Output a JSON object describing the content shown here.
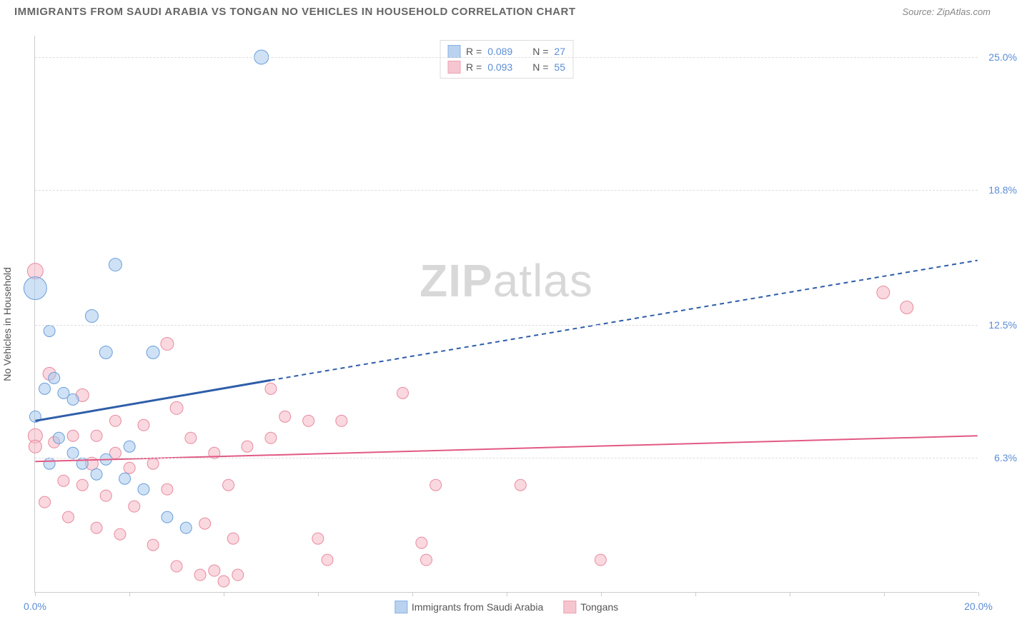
{
  "header": {
    "title": "IMMIGRANTS FROM SAUDI ARABIA VS TONGAN NO VEHICLES IN HOUSEHOLD CORRELATION CHART",
    "source": "Source: ZipAtlas.com"
  },
  "ylabel": "No Vehicles in Household",
  "watermark": {
    "bold": "ZIP",
    "light": "atlas"
  },
  "chart": {
    "type": "scatter",
    "xlim": [
      0,
      20
    ],
    "ylim": [
      0,
      26
    ],
    "background_color": "#ffffff",
    "grid_color": "#dddddd",
    "axis_color": "#cccccc",
    "tick_label_color": "#5b8dd6",
    "tick_fontsize": 14,
    "yticks": [
      {
        "value": 6.3,
        "label": "6.3%"
      },
      {
        "value": 12.5,
        "label": "12.5%"
      },
      {
        "value": 18.8,
        "label": "18.8%"
      },
      {
        "value": 25.0,
        "label": "25.0%"
      }
    ],
    "xticks_major": [
      0,
      20
    ],
    "xtick_labels": [
      {
        "value": 0,
        "label": "0.0%"
      },
      {
        "value": 20,
        "label": "20.0%"
      }
    ],
    "xticks_minor": [
      2,
      4,
      6,
      8,
      10,
      12,
      14,
      16,
      18
    ],
    "series": [
      {
        "key": "saudi",
        "label": "Immigrants from Saudi Arabia",
        "fill": "#a8c8ec",
        "stroke": "#6b9edb",
        "fill_opacity": 0.55,
        "marker_radius": 8,
        "points": [
          {
            "x": 4.8,
            "y": 25.0,
            "r": 10
          },
          {
            "x": 0.0,
            "y": 14.2,
            "r": 16
          },
          {
            "x": 1.7,
            "y": 15.3,
            "r": 9
          },
          {
            "x": 1.2,
            "y": 12.9,
            "r": 9
          },
          {
            "x": 0.3,
            "y": 12.2,
            "r": 8
          },
          {
            "x": 1.5,
            "y": 11.2,
            "r": 9
          },
          {
            "x": 2.5,
            "y": 11.2,
            "r": 9
          },
          {
            "x": 0.4,
            "y": 10.0,
            "r": 8
          },
          {
            "x": 0.2,
            "y": 9.5,
            "r": 8
          },
          {
            "x": 0.6,
            "y": 9.3,
            "r": 8
          },
          {
            "x": 0.0,
            "y": 8.2,
            "r": 8
          },
          {
            "x": 2.0,
            "y": 6.8,
            "r": 8
          },
          {
            "x": 1.5,
            "y": 6.2,
            "r": 8
          },
          {
            "x": 0.8,
            "y": 6.5,
            "r": 8
          },
          {
            "x": 1.3,
            "y": 5.5,
            "r": 8
          },
          {
            "x": 1.9,
            "y": 5.3,
            "r": 8
          },
          {
            "x": 2.3,
            "y": 4.8,
            "r": 8
          },
          {
            "x": 2.8,
            "y": 3.5,
            "r": 8
          },
          {
            "x": 3.2,
            "y": 3.0,
            "r": 8
          },
          {
            "x": 1.0,
            "y": 6.0,
            "r": 8
          },
          {
            "x": 0.5,
            "y": 7.2,
            "r": 8
          },
          {
            "x": 0.8,
            "y": 9.0,
            "r": 8
          },
          {
            "x": 0.3,
            "y": 6.0,
            "r": 8
          }
        ],
        "trend": {
          "color": "#2e5da8",
          "width": 3,
          "solid_from": {
            "x": 0,
            "y": 8.0
          },
          "solid_to": {
            "x": 5.0,
            "y": 9.9
          },
          "dash_to": {
            "x": 20,
            "y": 15.5
          }
        }
      },
      {
        "key": "tongan",
        "label": "Tongans",
        "fill": "#f5b8c5",
        "stroke": "#e88aa0",
        "fill_opacity": 0.55,
        "marker_radius": 8,
        "points": [
          {
            "x": 0.0,
            "y": 15.0,
            "r": 11
          },
          {
            "x": 0.3,
            "y": 10.2,
            "r": 9
          },
          {
            "x": 1.0,
            "y": 9.2,
            "r": 9
          },
          {
            "x": 2.8,
            "y": 11.6,
            "r": 9
          },
          {
            "x": 3.0,
            "y": 8.6,
            "r": 9
          },
          {
            "x": 1.7,
            "y": 8.0,
            "r": 8
          },
          {
            "x": 2.3,
            "y": 7.8,
            "r": 8
          },
          {
            "x": 0.0,
            "y": 7.3,
            "r": 10
          },
          {
            "x": 0.0,
            "y": 6.8,
            "r": 9
          },
          {
            "x": 0.4,
            "y": 7.0,
            "r": 8
          },
          {
            "x": 0.8,
            "y": 7.3,
            "r": 8
          },
          {
            "x": 1.3,
            "y": 7.3,
            "r": 8
          },
          {
            "x": 1.7,
            "y": 6.5,
            "r": 8
          },
          {
            "x": 1.2,
            "y": 6.0,
            "r": 9
          },
          {
            "x": 2.0,
            "y": 5.8,
            "r": 8
          },
          {
            "x": 2.5,
            "y": 6.0,
            "r": 8
          },
          {
            "x": 0.6,
            "y": 5.2,
            "r": 8
          },
          {
            "x": 1.0,
            "y": 5.0,
            "r": 8
          },
          {
            "x": 1.5,
            "y": 4.5,
            "r": 8
          },
          {
            "x": 2.1,
            "y": 4.0,
            "r": 8
          },
          {
            "x": 2.8,
            "y": 4.8,
            "r": 8
          },
          {
            "x": 3.3,
            "y": 7.2,
            "r": 8
          },
          {
            "x": 3.8,
            "y": 6.5,
            "r": 8
          },
          {
            "x": 4.1,
            "y": 5.0,
            "r": 8
          },
          {
            "x": 4.5,
            "y": 6.8,
            "r": 8
          },
          {
            "x": 5.0,
            "y": 7.2,
            "r": 8
          },
          {
            "x": 5.0,
            "y": 9.5,
            "r": 8
          },
          {
            "x": 5.3,
            "y": 8.2,
            "r": 8
          },
          {
            "x": 5.8,
            "y": 8.0,
            "r": 8
          },
          {
            "x": 6.2,
            "y": 1.5,
            "r": 8
          },
          {
            "x": 6.0,
            "y": 2.5,
            "r": 8
          },
          {
            "x": 6.5,
            "y": 8.0,
            "r": 8
          },
          {
            "x": 7.8,
            "y": 9.3,
            "r": 8
          },
          {
            "x": 8.5,
            "y": 5.0,
            "r": 8
          },
          {
            "x": 8.2,
            "y": 2.3,
            "r": 8
          },
          {
            "x": 8.3,
            "y": 1.5,
            "r": 8
          },
          {
            "x": 10.3,
            "y": 5.0,
            "r": 8
          },
          {
            "x": 12.0,
            "y": 1.5,
            "r": 8
          },
          {
            "x": 18.0,
            "y": 14.0,
            "r": 9
          },
          {
            "x": 18.5,
            "y": 13.3,
            "r": 9
          },
          {
            "x": 0.2,
            "y": 4.2,
            "r": 8
          },
          {
            "x": 0.7,
            "y": 3.5,
            "r": 8
          },
          {
            "x": 1.3,
            "y": 3.0,
            "r": 8
          },
          {
            "x": 1.8,
            "y": 2.7,
            "r": 8
          },
          {
            "x": 2.5,
            "y": 2.2,
            "r": 8
          },
          {
            "x": 3.0,
            "y": 1.2,
            "r": 8
          },
          {
            "x": 3.5,
            "y": 0.8,
            "r": 8
          },
          {
            "x": 3.8,
            "y": 1.0,
            "r": 8
          },
          {
            "x": 4.0,
            "y": 0.5,
            "r": 8
          },
          {
            "x": 4.3,
            "y": 0.8,
            "r": 8
          },
          {
            "x": 4.2,
            "y": 2.5,
            "r": 8
          },
          {
            "x": 3.6,
            "y": 3.2,
            "r": 8
          }
        ],
        "trend": {
          "color": "#e15a84",
          "width": 2,
          "solid_from": {
            "x": 0,
            "y": 6.1
          },
          "solid_to": {
            "x": 20,
            "y": 7.3
          },
          "dash_to": null
        }
      }
    ]
  },
  "legend_top": {
    "r_label": "R =",
    "n_label": "N =",
    "rows": [
      {
        "series_key": "saudi",
        "r": "0.089",
        "n": "27"
      },
      {
        "series_key": "tongan",
        "r": "0.093",
        "n": "55"
      }
    ]
  },
  "legend_bottom": [
    {
      "series_key": "saudi",
      "label": "Immigrants from Saudi Arabia"
    },
    {
      "series_key": "tongan",
      "label": "Tongans"
    }
  ]
}
